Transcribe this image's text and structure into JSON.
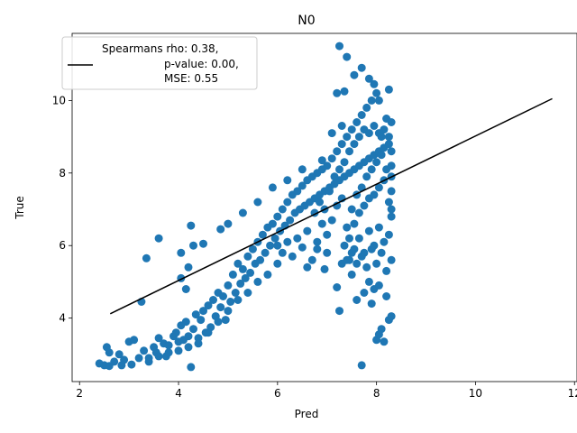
{
  "chart_data": {
    "type": "scatter",
    "title": "N0",
    "xlabel": "Pred",
    "ylabel": "True",
    "xlim": [
      1.85,
      12.05
    ],
    "ylim": [
      2.25,
      11.85
    ],
    "xticks": [
      2,
      4,
      6,
      8,
      10,
      12
    ],
    "yticks": [
      4,
      6,
      8,
      10
    ],
    "grid": false,
    "legend": {
      "position": "top-left",
      "lines": [
        "Spearmans rho: 0.38,",
        "p-value: 0.00,",
        "MSE: 0.55"
      ]
    },
    "fit_line": {
      "x": [
        2.62,
        11.55
      ],
      "y": [
        4.12,
        10.05
      ],
      "color": "#000000"
    },
    "point_color": "#1f77b4",
    "series": [
      {
        "points": [
          [
            2.4,
            2.75
          ],
          [
            2.5,
            2.7
          ],
          [
            2.6,
            2.68
          ],
          [
            2.7,
            2.8
          ],
          [
            2.55,
            3.2
          ],
          [
            2.6,
            3.05
          ],
          [
            2.8,
            3.0
          ],
          [
            2.9,
            2.85
          ],
          [
            3.0,
            3.35
          ],
          [
            3.1,
            3.4
          ],
          [
            2.85,
            2.7
          ],
          [
            3.05,
            2.72
          ],
          [
            3.2,
            2.9
          ],
          [
            3.3,
            3.1
          ],
          [
            3.4,
            2.8
          ],
          [
            3.5,
            3.2
          ],
          [
            3.55,
            3.05
          ],
          [
            3.6,
            3.45
          ],
          [
            3.7,
            3.3
          ],
          [
            3.75,
            2.95
          ],
          [
            3.8,
            3.25
          ],
          [
            3.9,
            3.5
          ],
          [
            3.95,
            3.6
          ],
          [
            4.0,
            3.35
          ],
          [
            4.05,
            3.8
          ],
          [
            4.1,
            3.4
          ],
          [
            4.15,
            3.9
          ],
          [
            4.2,
            3.5
          ],
          [
            4.25,
            2.65
          ],
          [
            4.3,
            3.7
          ],
          [
            4.35,
            4.1
          ],
          [
            4.4,
            3.45
          ],
          [
            4.45,
            3.95
          ],
          [
            4.5,
            4.2
          ],
          [
            4.55,
            3.6
          ],
          [
            4.6,
            4.35
          ],
          [
            4.65,
            3.75
          ],
          [
            4.7,
            4.5
          ],
          [
            4.75,
            4.05
          ],
          [
            4.8,
            4.7
          ],
          [
            4.85,
            4.3
          ],
          [
            4.9,
            4.6
          ],
          [
            4.95,
            3.95
          ],
          [
            5.0,
            4.9
          ],
          [
            5.05,
            4.45
          ],
          [
            5.1,
            5.2
          ],
          [
            5.15,
            4.7
          ],
          [
            5.2,
            5.5
          ],
          [
            5.25,
            4.95
          ],
          [
            5.3,
            5.35
          ],
          [
            5.35,
            5.1
          ],
          [
            5.4,
            5.7
          ],
          [
            5.45,
            5.25
          ],
          [
            5.5,
            5.9
          ],
          [
            5.55,
            5.5
          ],
          [
            5.6,
            6.1
          ],
          [
            5.65,
            5.6
          ],
          [
            5.7,
            6.3
          ],
          [
            5.75,
            5.8
          ],
          [
            5.8,
            6.5
          ],
          [
            5.85,
            6.0
          ],
          [
            5.9,
            6.6
          ],
          [
            5.95,
            6.2
          ],
          [
            6.0,
            6.8
          ],
          [
            6.05,
            6.4
          ],
          [
            6.1,
            7.0
          ],
          [
            6.15,
            6.55
          ],
          [
            6.2,
            7.2
          ],
          [
            6.25,
            6.7
          ],
          [
            6.3,
            7.4
          ],
          [
            6.35,
            6.9
          ],
          [
            6.4,
            7.5
          ],
          [
            6.45,
            7.0
          ],
          [
            6.5,
            7.65
          ],
          [
            6.55,
            7.1
          ],
          [
            6.6,
            7.8
          ],
          [
            6.65,
            7.2
          ],
          [
            6.7,
            7.9
          ],
          [
            6.75,
            7.3
          ],
          [
            6.8,
            8.0
          ],
          [
            6.85,
            7.4
          ],
          [
            6.9,
            8.1
          ],
          [
            6.95,
            7.5
          ],
          [
            7.0,
            8.2
          ],
          [
            7.05,
            7.6
          ],
          [
            7.1,
            8.4
          ],
          [
            7.15,
            7.7
          ],
          [
            7.2,
            8.6
          ],
          [
            7.25,
            7.8
          ],
          [
            7.3,
            8.8
          ],
          [
            7.35,
            7.9
          ],
          [
            7.4,
            9.0
          ],
          [
            7.45,
            8.0
          ],
          [
            7.5,
            9.2
          ],
          [
            7.55,
            8.1
          ],
          [
            7.6,
            9.4
          ],
          [
            7.65,
            8.2
          ],
          [
            7.7,
            9.6
          ],
          [
            7.75,
            8.3
          ],
          [
            7.8,
            9.8
          ],
          [
            7.85,
            8.4
          ],
          [
            7.9,
            10.0
          ],
          [
            7.95,
            8.5
          ],
          [
            8.0,
            10.2
          ],
          [
            8.05,
            8.6
          ],
          [
            8.1,
            9.0
          ],
          [
            8.15,
            8.7
          ],
          [
            8.2,
            9.5
          ],
          [
            8.25,
            8.8
          ],
          [
            8.3,
            9.4
          ],
          [
            7.25,
            11.5
          ],
          [
            7.4,
            11.2
          ],
          [
            7.55,
            10.7
          ],
          [
            7.7,
            10.9
          ],
          [
            7.85,
            10.6
          ],
          [
            7.95,
            10.45
          ],
          [
            8.05,
            10.0
          ],
          [
            8.25,
            10.3
          ],
          [
            7.2,
            10.2
          ],
          [
            7.35,
            10.25
          ],
          [
            3.35,
            5.65
          ],
          [
            3.6,
            6.2
          ],
          [
            3.25,
            4.45
          ],
          [
            4.05,
            5.8
          ],
          [
            4.25,
            6.55
          ],
          [
            4.5,
            6.05
          ],
          [
            4.05,
            5.1
          ],
          [
            4.2,
            5.4
          ],
          [
            4.3,
            6.0
          ],
          [
            4.15,
            4.8
          ],
          [
            5.0,
            6.6
          ],
          [
            4.85,
            6.45
          ],
          [
            5.3,
            6.9
          ],
          [
            5.6,
            7.2
          ],
          [
            5.9,
            7.6
          ],
          [
            6.2,
            7.8
          ],
          [
            6.5,
            8.1
          ],
          [
            6.9,
            8.35
          ],
          [
            7.1,
            9.1
          ],
          [
            7.3,
            9.3
          ],
          [
            7.2,
            4.85
          ],
          [
            7.25,
            4.2
          ],
          [
            7.7,
            2.7
          ],
          [
            8.0,
            3.4
          ],
          [
            8.05,
            3.55
          ],
          [
            8.1,
            3.7
          ],
          [
            8.15,
            3.35
          ],
          [
            8.25,
            3.95
          ],
          [
            8.3,
            4.05
          ],
          [
            8.2,
            4.6
          ],
          [
            7.5,
            5.2
          ],
          [
            7.6,
            4.5
          ],
          [
            7.75,
            4.7
          ],
          [
            7.85,
            5.0
          ],
          [
            7.9,
            4.4
          ],
          [
            7.95,
            4.8
          ],
          [
            8.05,
            4.9
          ],
          [
            7.3,
            5.5
          ],
          [
            7.0,
            5.8
          ],
          [
            6.95,
            5.35
          ],
          [
            6.6,
            5.4
          ],
          [
            6.7,
            5.6
          ],
          [
            6.8,
            5.9
          ],
          [
            6.5,
            5.95
          ],
          [
            6.3,
            5.7
          ],
          [
            6.1,
            5.8
          ],
          [
            6.0,
            5.5
          ],
          [
            5.8,
            5.2
          ],
          [
            5.6,
            5.0
          ],
          [
            5.4,
            4.7
          ],
          [
            5.2,
            4.5
          ],
          [
            5.0,
            4.2
          ],
          [
            4.8,
            3.9
          ],
          [
            4.6,
            3.6
          ],
          [
            4.4,
            3.3
          ],
          [
            4.2,
            3.2
          ],
          [
            4.0,
            3.1
          ],
          [
            3.8,
            3.05
          ],
          [
            3.6,
            2.95
          ],
          [
            3.4,
            2.9
          ],
          [
            7.45,
            6.2
          ],
          [
            7.55,
            6.6
          ],
          [
            7.65,
            6.9
          ],
          [
            7.75,
            7.1
          ],
          [
            7.85,
            7.3
          ],
          [
            7.95,
            7.4
          ],
          [
            8.05,
            7.6
          ],
          [
            8.15,
            7.8
          ],
          [
            8.25,
            7.2
          ],
          [
            8.3,
            6.8
          ],
          [
            7.4,
            6.5
          ],
          [
            7.5,
            7.0
          ],
          [
            7.6,
            7.4
          ],
          [
            7.7,
            7.6
          ],
          [
            7.8,
            7.9
          ],
          [
            7.9,
            8.1
          ],
          [
            8.0,
            8.3
          ],
          [
            8.1,
            8.5
          ],
          [
            8.2,
            8.1
          ],
          [
            8.3,
            7.5
          ],
          [
            7.0,
            6.3
          ],
          [
            7.1,
            6.7
          ],
          [
            7.2,
            7.1
          ],
          [
            7.3,
            7.3
          ],
          [
            6.8,
            6.1
          ],
          [
            6.9,
            6.6
          ],
          [
            6.6,
            6.4
          ],
          [
            6.4,
            6.2
          ],
          [
            6.2,
            6.1
          ],
          [
            6.0,
            6.0
          ],
          [
            7.35,
            6.0
          ],
          [
            7.45,
            5.6
          ],
          [
            7.55,
            5.9
          ],
          [
            7.65,
            6.2
          ],
          [
            7.75,
            5.8
          ],
          [
            7.85,
            6.4
          ],
          [
            7.95,
            6.0
          ],
          [
            8.05,
            6.5
          ],
          [
            8.15,
            6.1
          ],
          [
            8.25,
            6.3
          ],
          [
            8.3,
            5.6
          ],
          [
            8.2,
            5.3
          ],
          [
            8.1,
            5.8
          ],
          [
            8.0,
            5.5
          ],
          [
            7.9,
            5.9
          ],
          [
            7.8,
            5.4
          ],
          [
            7.7,
            5.7
          ],
          [
            7.6,
            5.5
          ],
          [
            7.5,
            5.8
          ],
          [
            7.4,
            5.6
          ],
          [
            6.75,
            6.9
          ],
          [
            6.85,
            7.2
          ],
          [
            6.95,
            7.0
          ],
          [
            7.05,
            7.5
          ],
          [
            7.15,
            7.9
          ],
          [
            7.25,
            8.1
          ],
          [
            7.35,
            8.3
          ],
          [
            7.45,
            8.6
          ],
          [
            7.55,
            8.8
          ],
          [
            7.65,
            9.0
          ],
          [
            7.75,
            9.2
          ],
          [
            7.85,
            9.1
          ],
          [
            7.95,
            9.3
          ],
          [
            8.05,
            9.1
          ],
          [
            8.15,
            9.2
          ],
          [
            8.25,
            9.0
          ],
          [
            8.3,
            8.6
          ],
          [
            8.3,
            8.2
          ],
          [
            8.3,
            7.9
          ],
          [
            8.3,
            7.0
          ]
        ]
      }
    ]
  }
}
